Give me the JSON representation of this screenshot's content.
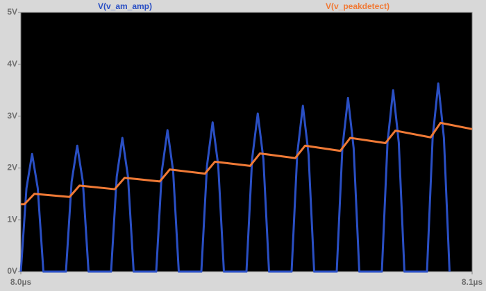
{
  "chart_data": {
    "type": "line",
    "xlim": [
      8.0,
      8.1
    ],
    "xticks": [
      {
        "value": 8.0,
        "label": "8.0µs"
      },
      {
        "value": 8.1,
        "label": "8.1µs"
      }
    ],
    "ylim": [
      0,
      5
    ],
    "yticks": [
      {
        "value": 0,
        "label": "0V"
      },
      {
        "value": 1,
        "label": "1V"
      },
      {
        "value": 2,
        "label": "2V"
      },
      {
        "value": 3,
        "label": "3V"
      },
      {
        "value": 4,
        "label": "4V"
      },
      {
        "value": 5,
        "label": "5V"
      }
    ],
    "series": [
      {
        "name": "V(v_am_amp)",
        "color": "#2a4fc4",
        "x": [
          8.0,
          8.00125,
          8.0025,
          8.00375,
          8.005,
          8.01,
          8.01125,
          8.0125,
          8.01375,
          8.015,
          8.02,
          8.02125,
          8.0225,
          8.02375,
          8.025,
          8.03,
          8.03125,
          8.0325,
          8.03375,
          8.035,
          8.04,
          8.04125,
          8.0425,
          8.04375,
          8.045,
          8.05,
          8.05125,
          8.0525,
          8.05375,
          8.055,
          8.06,
          8.06125,
          8.0625,
          8.06375,
          8.065,
          8.07,
          8.07125,
          8.0725,
          8.07375,
          8.075,
          8.08,
          8.08125,
          8.0825,
          8.08375,
          8.085,
          8.09,
          8.09125,
          8.0925,
          8.09375,
          8.095
        ],
        "values": [
          0,
          1.61,
          2.27,
          1.61,
          0,
          0,
          1.73,
          2.43,
          1.73,
          0,
          0,
          1.83,
          2.58,
          1.83,
          0,
          0,
          1.94,
          2.73,
          1.94,
          0,
          0,
          2.04,
          2.88,
          2.04,
          0,
          0,
          2.17,
          3.05,
          2.17,
          0,
          0,
          2.27,
          3.2,
          2.27,
          0,
          0,
          2.38,
          3.35,
          2.38,
          0,
          0,
          2.49,
          3.5,
          2.49,
          0,
          0,
          2.58,
          3.63,
          2.58,
          0
        ]
      },
      {
        "name": "V(v_peakdetect)",
        "color": "#f07a36",
        "x": [
          8.0,
          8.0008,
          8.003,
          8.0108,
          8.013,
          8.0208,
          8.023,
          8.0308,
          8.033,
          8.0408,
          8.043,
          8.0508,
          8.053,
          8.0608,
          8.063,
          8.0708,
          8.073,
          8.0808,
          8.083,
          8.0908,
          8.093,
          8.1
        ],
        "values": [
          1.3,
          1.3,
          1.5,
          1.44,
          1.66,
          1.59,
          1.81,
          1.74,
          1.97,
          1.89,
          2.12,
          2.04,
          2.28,
          2.19,
          2.43,
          2.33,
          2.58,
          2.48,
          2.72,
          2.59,
          2.87,
          2.75
        ]
      }
    ]
  }
}
